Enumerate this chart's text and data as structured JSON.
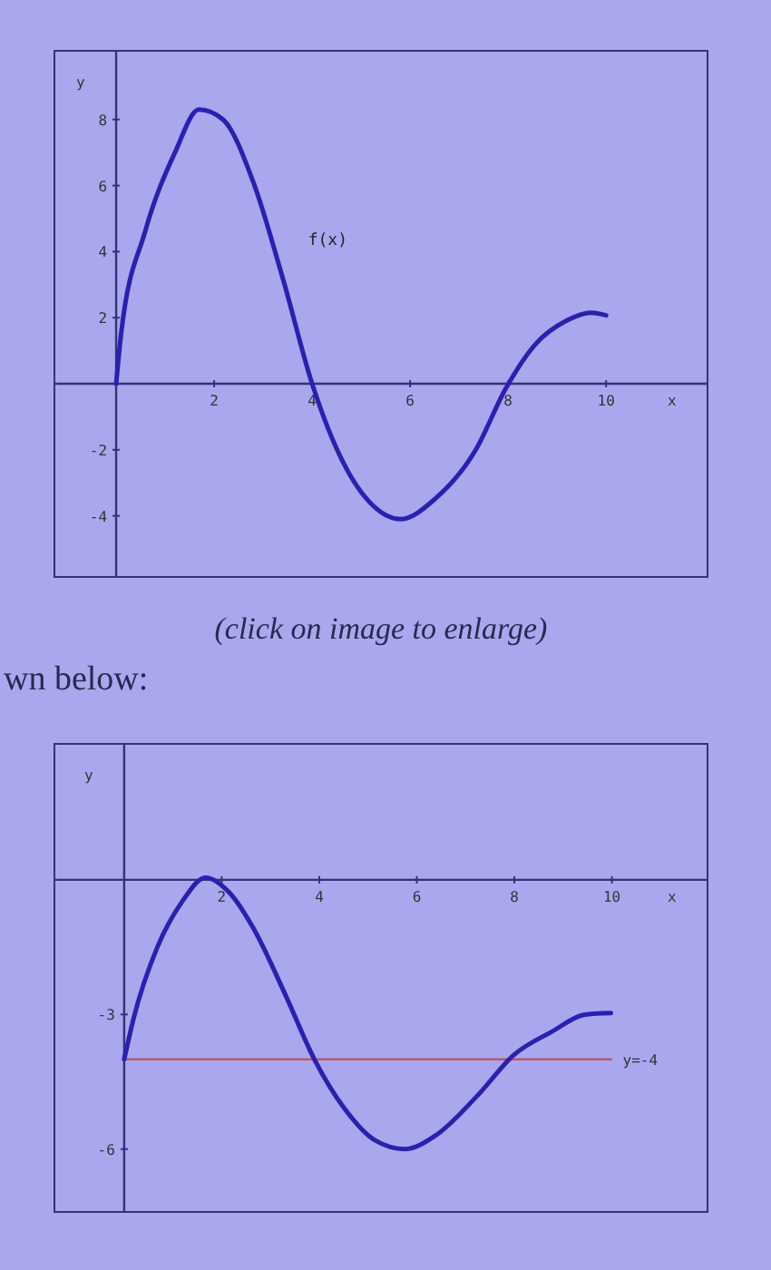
{
  "chart_data": [
    {
      "type": "line",
      "xlabel": "x",
      "ylabel": "y",
      "xlim": [
        -1.26,
        12.07
      ],
      "ylim": [
        -5.85,
        10.08
      ],
      "xticks": [
        2,
        4,
        6,
        8,
        10
      ],
      "yticks": [
        -4,
        -2,
        2,
        4,
        6,
        8
      ],
      "series": [
        {
          "name": "f(x)",
          "color": "#2a20b0",
          "x": [
            0,
            0.1,
            0.59,
            1.2,
            1.69,
            2.18,
            2.8,
            3.4,
            4.0,
            4.64,
            5.25,
            5.8,
            6.5,
            7.34,
            7.95,
            8.56,
            9.18,
            9.7,
            10
          ],
          "values": [
            0,
            1.5,
            4.6,
            7.0,
            8.3,
            8.0,
            6.1,
            3.2,
            0,
            -2.4,
            -3.7,
            -4.1,
            -3.5,
            -2.0,
            -0.15,
            1.2,
            1.9,
            2.15,
            2.07
          ]
        }
      ],
      "annotations": [
        "(click on image to enlarge)",
        "wn below:"
      ]
    },
    {
      "type": "line",
      "xlabel": "x",
      "ylabel": "y",
      "xlim": [
        -1.43,
        11.96
      ],
      "ylim": [
        -7.4,
        3.03
      ],
      "xticks": [
        2,
        4,
        6,
        8,
        10
      ],
      "yticks": [
        -3,
        -6
      ],
      "series": [
        {
          "color": "#2a20b0",
          "x": [
            0,
            0.19,
            0.68,
            1.18,
            1.67,
            2.17,
            2.66,
            3.28,
            3.9,
            4.52,
            5.14,
            5.76,
            6.38,
            7.25,
            7.99,
            8.74,
            9.48,
            9.98
          ],
          "values": [
            -4,
            -3.1,
            -1.5,
            -0.5,
            0.05,
            -0.3,
            -1.1,
            -2.5,
            -4.0,
            -5.1,
            -5.8,
            -6.0,
            -5.7,
            -4.8,
            -3.9,
            -3.4,
            -3.0,
            -2.97
          ]
        }
      ],
      "ref_lines": [
        {
          "axis": "y",
          "value": -4,
          "label": "y=-4",
          "color": "#b85a6a"
        }
      ]
    }
  ]
}
